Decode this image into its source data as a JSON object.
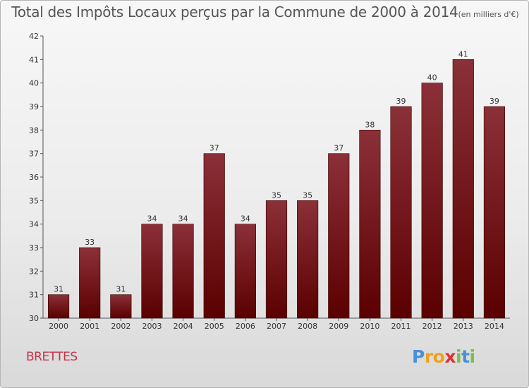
{
  "header": {
    "title": "Total des Impôts Locaux perçus par la Commune de 2000 à 2014",
    "unit": "(en milliers d'€)"
  },
  "footer": {
    "commune": "BRETTES",
    "logo_letters": [
      {
        "ch": "P",
        "color": "#4a90d9"
      },
      {
        "ch": "r",
        "color": "#f0a020"
      },
      {
        "ch": "o",
        "color": "#f0a020"
      },
      {
        "ch": "x",
        "color": "#e03030"
      },
      {
        "ch": "i",
        "color": "#7ac143"
      },
      {
        "ch": "t",
        "color": "#4a90d9"
      },
      {
        "ch": "i",
        "color": "#7ac143"
      }
    ]
  },
  "chart_data": {
    "type": "bar",
    "title": "Total des Impôts Locaux perçus par la Commune de 2000 à 2014",
    "xlabel": "",
    "ylabel": "(en milliers d'€)",
    "categories": [
      "2000",
      "2001",
      "2002",
      "2003",
      "2004",
      "2005",
      "2006",
      "2007",
      "2008",
      "2009",
      "2010",
      "2011",
      "2012",
      "2013",
      "2014"
    ],
    "values": [
      31,
      33,
      31,
      34,
      34,
      37,
      34,
      35,
      35,
      37,
      38,
      39,
      40,
      41,
      39
    ],
    "ylim": [
      30,
      42
    ],
    "yticks": [
      30,
      31,
      32,
      33,
      34,
      35,
      36,
      37,
      38,
      39,
      40,
      41,
      42
    ],
    "grid": false,
    "bar_color_top": "#8b3038",
    "bar_color_bottom": "#5a0000"
  }
}
